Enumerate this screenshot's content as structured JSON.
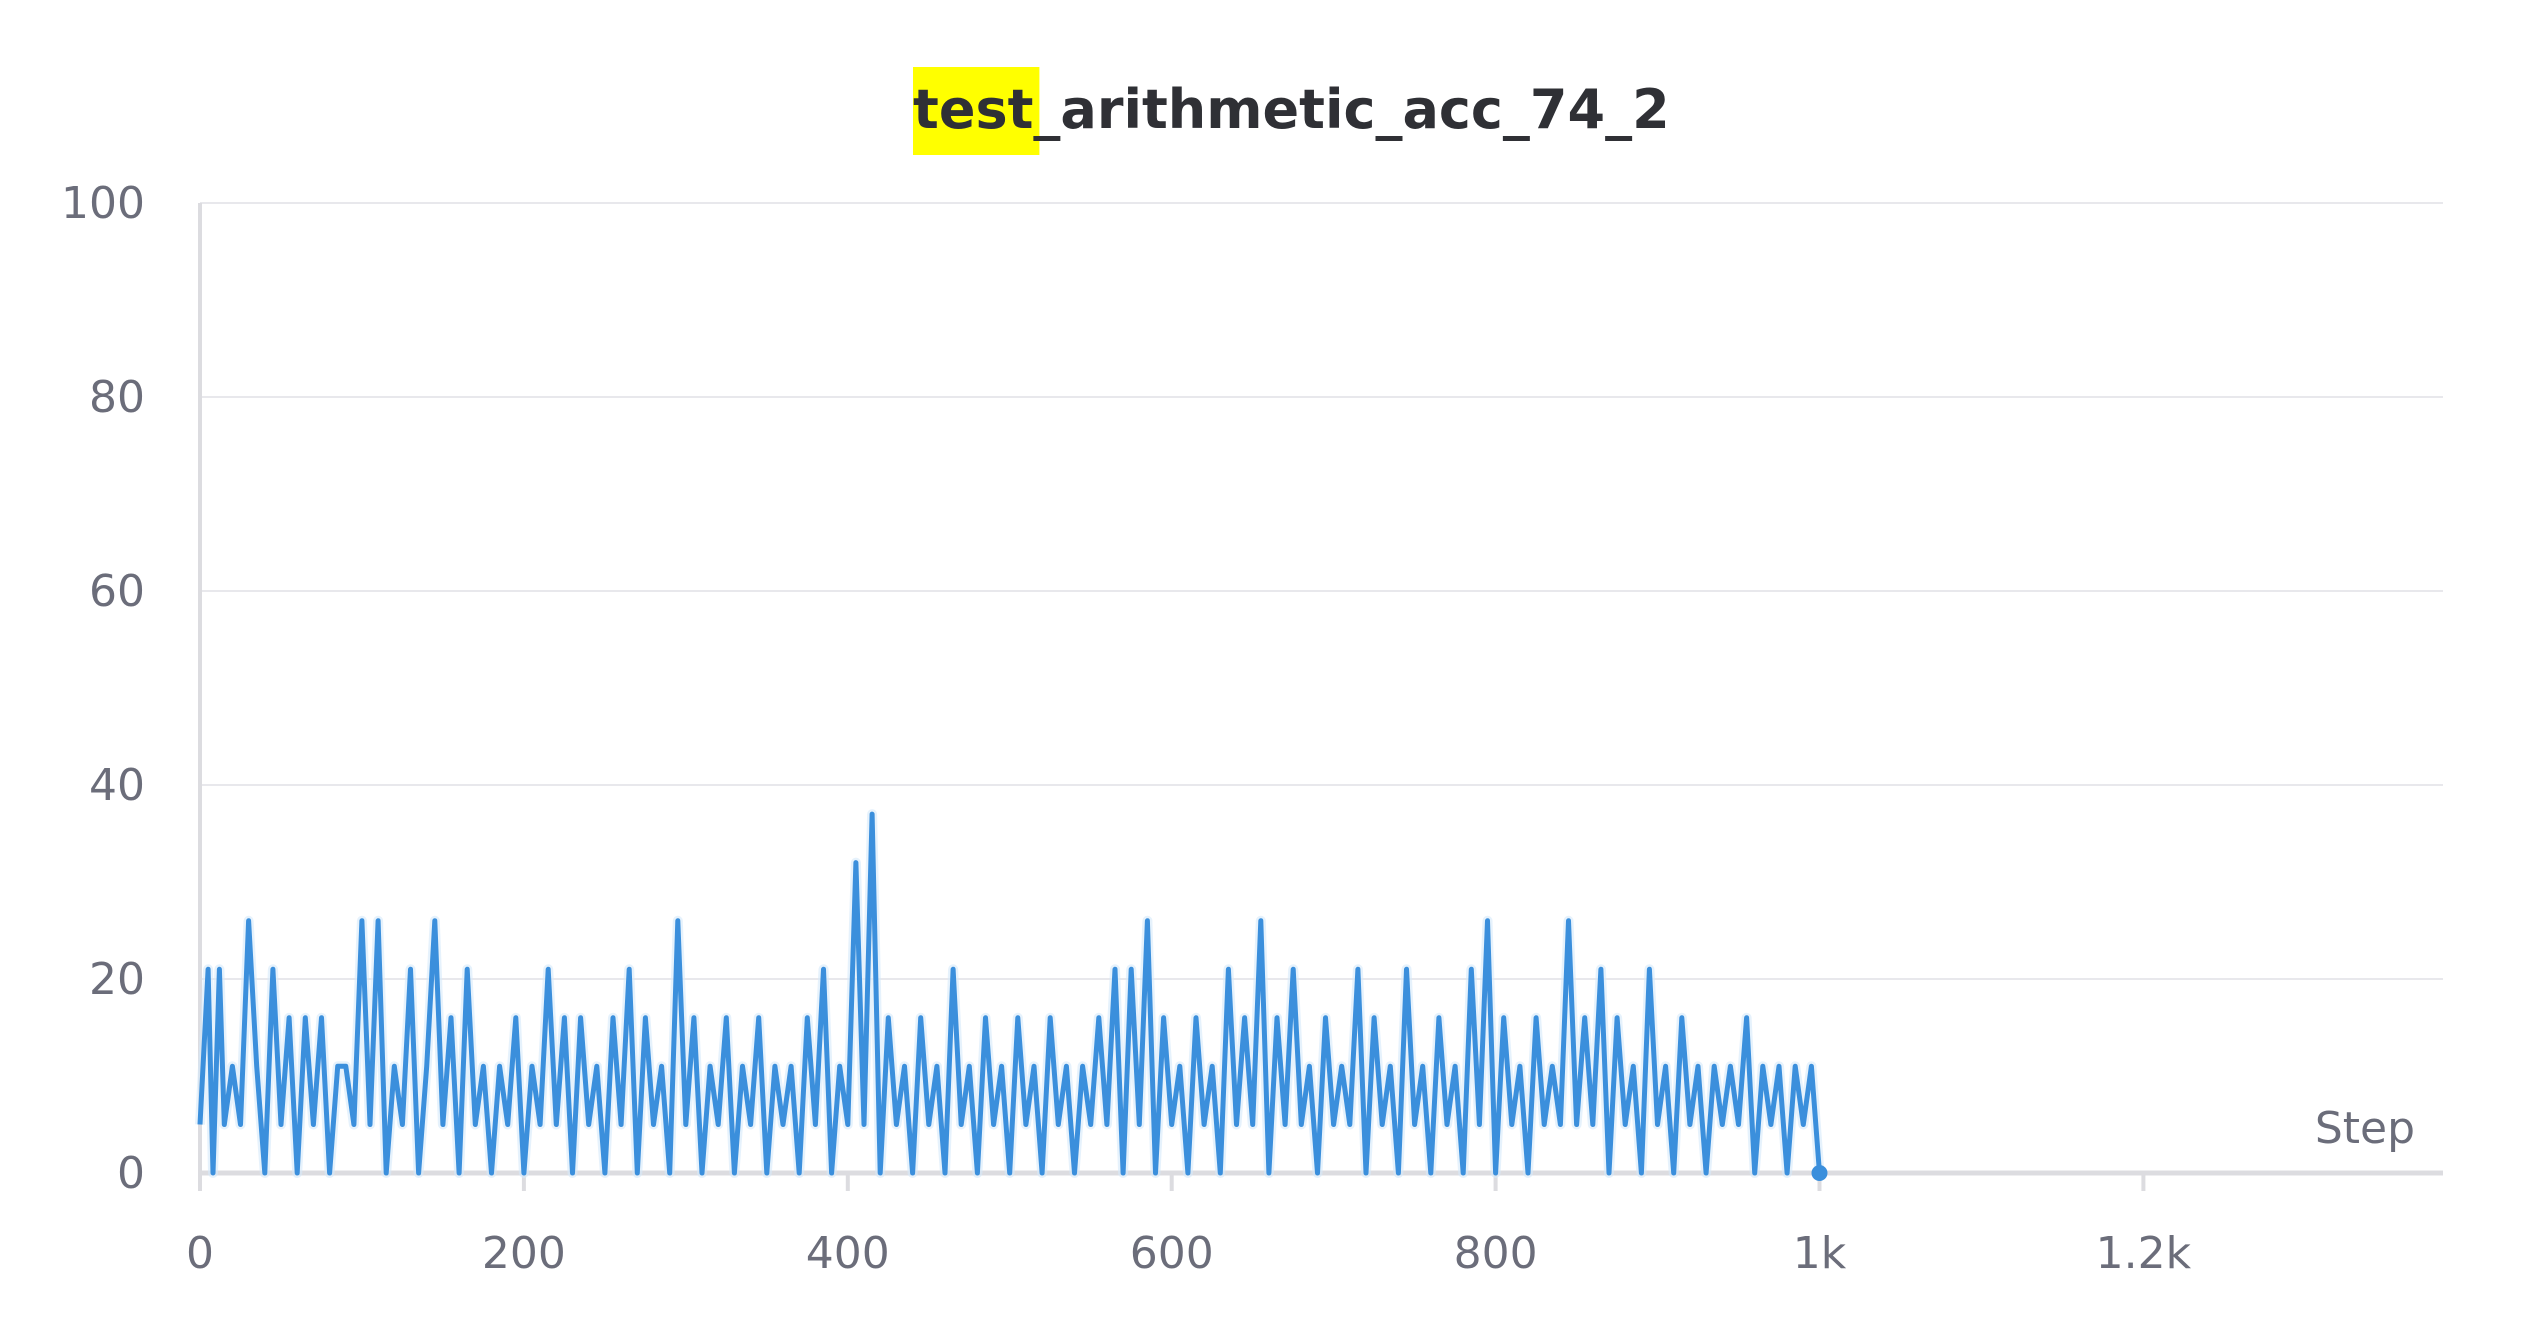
{
  "chart_data": {
    "type": "line",
    "title": "test_arithmetic_acc_74_2",
    "title_highlight": "test",
    "title_rest": "_arithmetic_acc_74_2",
    "xlabel": "Step",
    "ylabel": "",
    "xlim": [
      0,
      1385
    ],
    "ylim": [
      0,
      100
    ],
    "x_ticks": [
      0,
      200,
      400,
      600,
      800,
      1000,
      1200
    ],
    "x_tick_labels": [
      "0",
      "200",
      "400",
      "600",
      "800",
      "1k",
      "1.2k"
    ],
    "y_ticks": [
      0,
      20,
      40,
      60,
      80,
      100
    ],
    "y_tick_labels": [
      "0",
      "20",
      "40",
      "60",
      "80",
      "100"
    ],
    "grid": true,
    "colors": {
      "line": "#3b8fdc",
      "highlight": "#ffff00",
      "grid": "#e8e8ec",
      "axis": "#dcdce0"
    },
    "series": [
      {
        "values": [
          [
            0,
            5
          ],
          [
            5,
            21
          ],
          [
            8,
            0
          ],
          [
            12,
            21
          ],
          [
            15,
            5
          ],
          [
            20,
            11
          ],
          [
            25,
            5
          ],
          [
            30,
            26
          ],
          [
            35,
            11
          ],
          [
            40,
            0
          ],
          [
            45,
            21
          ],
          [
            50,
            5
          ],
          [
            55,
            16
          ],
          [
            60,
            0
          ],
          [
            65,
            16
          ],
          [
            70,
            5
          ],
          [
            75,
            16
          ],
          [
            80,
            0
          ],
          [
            85,
            11
          ],
          [
            90,
            11
          ],
          [
            95,
            5
          ],
          [
            100,
            26
          ],
          [
            105,
            5
          ],
          [
            110,
            26
          ],
          [
            115,
            0
          ],
          [
            120,
            11
          ],
          [
            125,
            5
          ],
          [
            130,
            21
          ],
          [
            135,
            0
          ],
          [
            140,
            11
          ],
          [
            145,
            26
          ],
          [
            150,
            5
          ],
          [
            155,
            16
          ],
          [
            160,
            0
          ],
          [
            165,
            21
          ],
          [
            170,
            5
          ],
          [
            175,
            11
          ],
          [
            180,
            0
          ],
          [
            185,
            11
          ],
          [
            190,
            5
          ],
          [
            195,
            16
          ],
          [
            200,
            0
          ],
          [
            205,
            11
          ],
          [
            210,
            5
          ],
          [
            215,
            21
          ],
          [
            220,
            5
          ],
          [
            225,
            16
          ],
          [
            230,
            0
          ],
          [
            235,
            16
          ],
          [
            240,
            5
          ],
          [
            245,
            11
          ],
          [
            250,
            0
          ],
          [
            255,
            16
          ],
          [
            260,
            5
          ],
          [
            265,
            21
          ],
          [
            270,
            0
          ],
          [
            275,
            16
          ],
          [
            280,
            5
          ],
          [
            285,
            11
          ],
          [
            290,
            0
          ],
          [
            295,
            26
          ],
          [
            300,
            5
          ],
          [
            305,
            16
          ],
          [
            310,
            0
          ],
          [
            315,
            11
          ],
          [
            320,
            5
          ],
          [
            325,
            16
          ],
          [
            330,
            0
          ],
          [
            335,
            11
          ],
          [
            340,
            5
          ],
          [
            345,
            16
          ],
          [
            350,
            0
          ],
          [
            355,
            11
          ],
          [
            360,
            5
          ],
          [
            365,
            11
          ],
          [
            370,
            0
          ],
          [
            375,
            16
          ],
          [
            380,
            5
          ],
          [
            385,
            21
          ],
          [
            390,
            0
          ],
          [
            395,
            11
          ],
          [
            400,
            5
          ],
          [
            405,
            32
          ],
          [
            410,
            5
          ],
          [
            415,
            37
          ],
          [
            420,
            0
          ],
          [
            425,
            16
          ],
          [
            430,
            5
          ],
          [
            435,
            11
          ],
          [
            440,
            0
          ],
          [
            445,
            16
          ],
          [
            450,
            5
          ],
          [
            455,
            11
          ],
          [
            460,
            0
          ],
          [
            465,
            21
          ],
          [
            470,
            5
          ],
          [
            475,
            11
          ],
          [
            480,
            0
          ],
          [
            485,
            16
          ],
          [
            490,
            5
          ],
          [
            495,
            11
          ],
          [
            500,
            0
          ],
          [
            505,
            16
          ],
          [
            510,
            5
          ],
          [
            515,
            11
          ],
          [
            520,
            0
          ],
          [
            525,
            16
          ],
          [
            530,
            5
          ],
          [
            535,
            11
          ],
          [
            540,
            0
          ],
          [
            545,
            11
          ],
          [
            550,
            5
          ],
          [
            555,
            16
          ],
          [
            560,
            5
          ],
          [
            565,
            21
          ],
          [
            570,
            0
          ],
          [
            575,
            21
          ],
          [
            580,
            5
          ],
          [
            585,
            26
          ],
          [
            590,
            0
          ],
          [
            595,
            16
          ],
          [
            600,
            5
          ],
          [
            605,
            11
          ],
          [
            610,
            0
          ],
          [
            615,
            16
          ],
          [
            620,
            5
          ],
          [
            625,
            11
          ],
          [
            630,
            0
          ],
          [
            635,
            21
          ],
          [
            640,
            5
          ],
          [
            645,
            16
          ],
          [
            650,
            5
          ],
          [
            655,
            26
          ],
          [
            660,
            0
          ],
          [
            665,
            16
          ],
          [
            670,
            5
          ],
          [
            675,
            21
          ],
          [
            680,
            5
          ],
          [
            685,
            11
          ],
          [
            690,
            0
          ],
          [
            695,
            16
          ],
          [
            700,
            5
          ],
          [
            705,
            11
          ],
          [
            710,
            5
          ],
          [
            715,
            21
          ],
          [
            720,
            0
          ],
          [
            725,
            16
          ],
          [
            730,
            5
          ],
          [
            735,
            11
          ],
          [
            740,
            0
          ],
          [
            745,
            21
          ],
          [
            750,
            5
          ],
          [
            755,
            11
          ],
          [
            760,
            0
          ],
          [
            765,
            16
          ],
          [
            770,
            5
          ],
          [
            775,
            11
          ],
          [
            780,
            0
          ],
          [
            785,
            21
          ],
          [
            790,
            5
          ],
          [
            795,
            26
          ],
          [
            800,
            0
          ],
          [
            805,
            16
          ],
          [
            810,
            5
          ],
          [
            815,
            11
          ],
          [
            820,
            0
          ],
          [
            825,
            16
          ],
          [
            830,
            5
          ],
          [
            835,
            11
          ],
          [
            840,
            5
          ],
          [
            845,
            26
          ],
          [
            850,
            5
          ],
          [
            855,
            16
          ],
          [
            860,
            5
          ],
          [
            865,
            21
          ],
          [
            870,
            0
          ],
          [
            875,
            16
          ],
          [
            880,
            5
          ],
          [
            885,
            11
          ],
          [
            890,
            0
          ],
          [
            895,
            21
          ],
          [
            900,
            5
          ],
          [
            905,
            11
          ],
          [
            910,
            0
          ],
          [
            915,
            16
          ],
          [
            920,
            5
          ],
          [
            925,
            11
          ],
          [
            930,
            0
          ],
          [
            935,
            11
          ],
          [
            940,
            5
          ],
          [
            945,
            11
          ],
          [
            950,
            5
          ],
          [
            955,
            16
          ],
          [
            960,
            0
          ],
          [
            965,
            11
          ],
          [
            970,
            5
          ],
          [
            975,
            11
          ],
          [
            980,
            0
          ],
          [
            985,
            11
          ],
          [
            990,
            5
          ],
          [
            995,
            11
          ],
          [
            1000,
            0
          ],
          [
            505,
            16
          ]
        ]
      }
    ]
  }
}
